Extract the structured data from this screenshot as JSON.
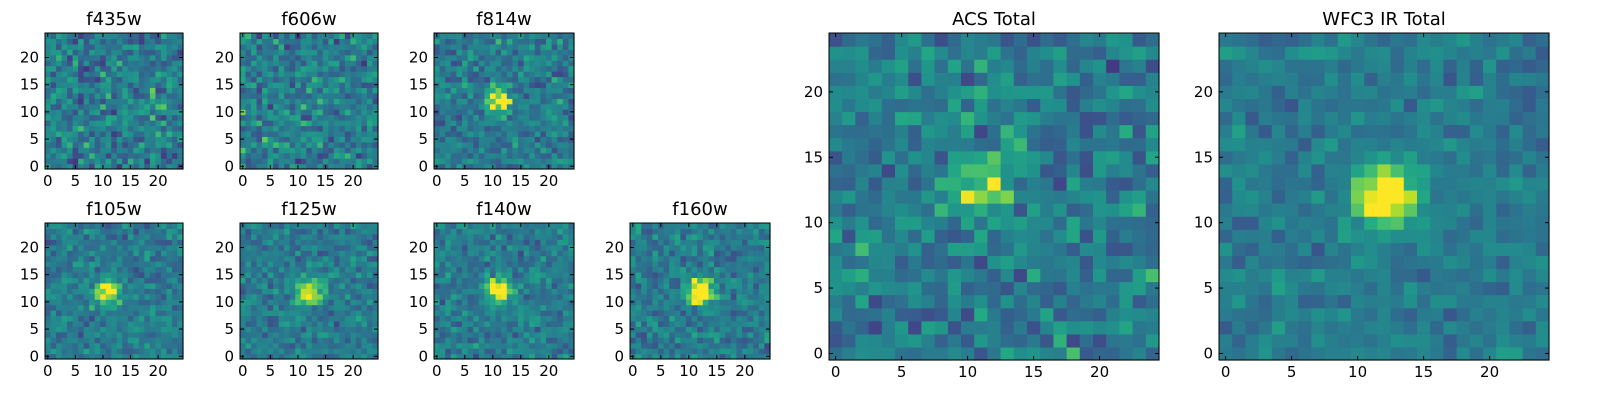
{
  "figure": {
    "description_type": "multi-panel image cutouts",
    "colormap": "viridis",
    "colors": {
      "viridis_low": "#440154",
      "viridis_mid": "#21918c",
      "viridis_high": "#fde725",
      "frame": "#000000",
      "background": "#ffffff"
    }
  },
  "chart_data": [
    {
      "type": "heatmap",
      "title": "f435w",
      "size": 25,
      "source_center": [
        12,
        12
      ],
      "source_strength": 0.08,
      "noise": 0.36,
      "xticks": [
        0,
        5,
        10,
        15,
        20
      ],
      "yticks": [
        0,
        5,
        10,
        15,
        20
      ],
      "xlim": [
        0,
        25
      ],
      "ylim": [
        0,
        25
      ],
      "xlabel": "",
      "ylabel": ""
    },
    {
      "type": "heatmap",
      "title": "f606w",
      "size": 25,
      "source_center": [
        12,
        12
      ],
      "source_strength": 0.05,
      "noise": 0.36,
      "xticks": [
        0,
        5,
        10,
        15,
        20
      ],
      "yticks": [
        0,
        5,
        10,
        15,
        20
      ],
      "xlim": [
        0,
        25
      ],
      "ylim": [
        0,
        25
      ],
      "xlabel": "",
      "ylabel": ""
    },
    {
      "type": "heatmap",
      "title": "f814w",
      "size": 25,
      "source_center": [
        11,
        12
      ],
      "source_strength": 0.55,
      "noise": 0.3,
      "xticks": [
        0,
        5,
        10,
        15,
        20
      ],
      "yticks": [
        0,
        5,
        10,
        15,
        20
      ],
      "xlim": [
        0,
        25
      ],
      "ylim": [
        0,
        25
      ],
      "xlabel": "",
      "ylabel": ""
    },
    {
      "type": "heatmap",
      "title": "f105w",
      "size": 25,
      "source_center": [
        11,
        12
      ],
      "source_strength": 0.65,
      "noise": 0.26,
      "xticks": [
        0,
        5,
        10,
        15,
        20
      ],
      "yticks": [
        0,
        5,
        10,
        15,
        20
      ],
      "xlim": [
        0,
        25
      ],
      "ylim": [
        0,
        25
      ],
      "xlabel": "",
      "ylabel": ""
    },
    {
      "type": "heatmap",
      "title": "f125w",
      "size": 25,
      "source_center": [
        12,
        12
      ],
      "source_strength": 0.55,
      "noise": 0.26,
      "xticks": [
        0,
        5,
        10,
        15,
        20
      ],
      "yticks": [
        0,
        5,
        10,
        15,
        20
      ],
      "xlim": [
        0,
        25
      ],
      "ylim": [
        0,
        25
      ],
      "xlabel": "",
      "ylabel": ""
    },
    {
      "type": "heatmap",
      "title": "f140w",
      "size": 25,
      "source_center": [
        11,
        12
      ],
      "source_strength": 0.6,
      "noise": 0.26,
      "xticks": [
        0,
        5,
        10,
        15,
        20
      ],
      "yticks": [
        0,
        5,
        10,
        15,
        20
      ],
      "xlim": [
        0,
        25
      ],
      "ylim": [
        0,
        25
      ],
      "xlabel": "",
      "ylabel": ""
    },
    {
      "type": "heatmap",
      "title": "f160w",
      "size": 25,
      "source_center": [
        12,
        12
      ],
      "source_strength": 0.75,
      "noise": 0.26,
      "xticks": [
        0,
        5,
        10,
        15,
        20
      ],
      "yticks": [
        0,
        5,
        10,
        15,
        20
      ],
      "xlim": [
        0,
        25
      ],
      "ylim": [
        0,
        25
      ],
      "xlabel": "",
      "ylabel": ""
    },
    {
      "type": "heatmap",
      "title": "ACS Total",
      "size": 25,
      "source_center": [
        11,
        13
      ],
      "source_strength": 0.4,
      "noise": 0.32,
      "xticks": [
        0,
        5,
        10,
        15,
        20
      ],
      "yticks": [
        0,
        5,
        10,
        15,
        20
      ],
      "xlim": [
        0,
        25
      ],
      "ylim": [
        0,
        25
      ],
      "xlabel": "",
      "ylabel": ""
    },
    {
      "type": "heatmap",
      "title": "WFC3 IR Total",
      "size": 25,
      "source_center": [
        12,
        12
      ],
      "source_strength": 0.7,
      "noise": 0.2,
      "xticks": [
        0,
        5,
        10,
        15,
        20
      ],
      "yticks": [
        0,
        5,
        10,
        15,
        20
      ],
      "xlim": [
        0,
        25
      ],
      "ylim": [
        0,
        25
      ],
      "xlabel": "",
      "ylabel": ""
    }
  ]
}
